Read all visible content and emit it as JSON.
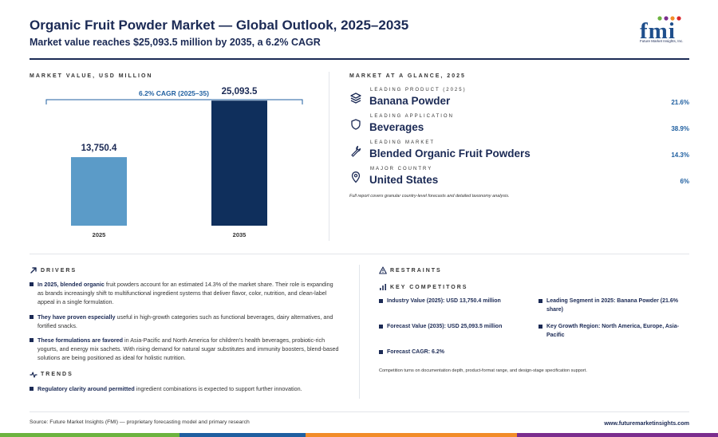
{
  "header": {
    "title": "Organic Fruit Powder Market — Global Outlook, 2025–2035",
    "subtitle": "Market value reaches $25,093.5 million by 2035, a 6.2% CAGR",
    "logo_text": "fmi",
    "logo_subtext": "Future Market Insights, Inc."
  },
  "left_panel": {
    "label": "MARKET VALUE, USD MILLION"
  },
  "chart_data": {
    "type": "bar",
    "categories": [
      "2025",
      "2035"
    ],
    "values": [
      13750.4,
      25093.5
    ],
    "value_labels": [
      "13,750.4",
      "25,093.5"
    ],
    "colors": [
      "#5b9bc8",
      "#0f2f5c"
    ],
    "annotation": "6.2% CAGR (2025–35)",
    "ylim": [
      0,
      28000
    ]
  },
  "glance": {
    "label": "MARKET AT A GLANCE, 2025",
    "items": [
      {
        "icon": "layers-icon",
        "caption": "LEADING PRODUCT (2025)",
        "value": "Banana Powder",
        "pct": "21.6%"
      },
      {
        "icon": "shield-icon",
        "caption": "LEADING APPLICATION",
        "value": "Beverages",
        "pct": "38.9%"
      },
      {
        "icon": "wrench-icon",
        "caption": "LEADING MARKET",
        "value": "Blended Organic Fruit Powders",
        "pct": "14.3%"
      },
      {
        "icon": "location-pin-icon",
        "caption": "MAJOR COUNTRY",
        "value": "United States",
        "pct": "6%"
      }
    ],
    "note": "Full report covers granular country-level forecasts and detailed taxonomy analysis."
  },
  "drivers": {
    "label": "DRIVERS",
    "items": [
      {
        "bold": "In 2025, blended organic",
        "text": " fruit powders account for an estimated 14.3% of the market share. Their role is expanding as brands increasingly shift to multifunctional ingredient systems that deliver flavor, color, nutrition, and clean-label appeal in a single formulation."
      },
      {
        "bold": "They have proven especially",
        "text": " useful in high-growth categories such as functional beverages, dairy alternatives, and fortified snacks."
      },
      {
        "bold": "These formulations are favored",
        "text": " in Asia-Pacific and North America for children's health beverages, probiotic-rich yogurts, and energy mix sachets. With rising demand for natural sugar substitutes and immunity boosters, blend-based solutions are being positioned as ideal for holistic nutrition."
      }
    ]
  },
  "trends": {
    "label": "TRENDS",
    "items": [
      {
        "bold": "Regulatory clarity around permitted",
        "text": " ingredient combinations is expected to support further innovation."
      }
    ]
  },
  "restraints": {
    "label": "RESTRAINTS"
  },
  "competitors": {
    "label": "KEY COMPETITORS",
    "items": [
      "Industry Value (2025): USD 13,750.4 million",
      "Leading Segment in 2025: Banana Powder (21.6% share)",
      "Forecast Value (2035): USD 25,093.5 million",
      "Key Growth Region: North America, Europe, Asia-Pacific",
      "Forecast CAGR: 6.2%"
    ],
    "note": "Competition turns on documentation depth, product-format range, and design-stage specification support."
  },
  "footer": {
    "source": "Source: Future Market Insights (FMI) — proprietary forecasting model and primary research",
    "site": "www.futuremarketinsights.com"
  },
  "stripe_colors": [
    "#6cb33f",
    "#1f5fa0",
    "#f28c28",
    "#7b2d8e"
  ]
}
